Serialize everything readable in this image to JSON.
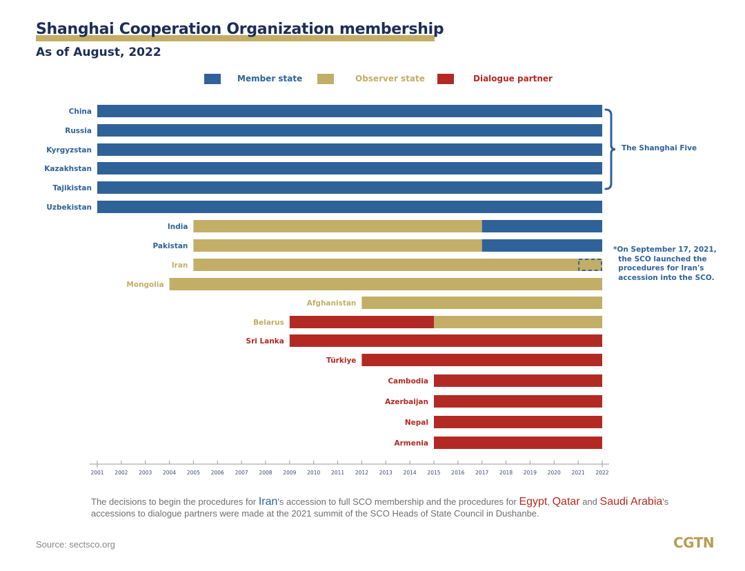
{
  "header": {
    "title": "Shanghai Cooperation Organization membership",
    "subtitle": "As of August, 2022"
  },
  "colors": {
    "member": "#2f6299",
    "observer": "#c2ae66",
    "dialogue": "#b32a24",
    "title": "#1c2d57",
    "axis": "#999999"
  },
  "chart_data": {
    "type": "bar",
    "orientation": "horizontal-timeline",
    "title": "Shanghai Cooperation Organization membership",
    "subtitle": "As of August, 2022",
    "xlabel": "",
    "ylabel": "",
    "xlim": [
      2001,
      2022
    ],
    "x_ticks": [
      "2001",
      "2002",
      "2003",
      "2004",
      "2005",
      "2006",
      "2007",
      "2008",
      "2009",
      "2010",
      "2011",
      "2012",
      "2013",
      "2014",
      "2015",
      "2016",
      "2017",
      "2018",
      "2019",
      "2020",
      "2021",
      "2022"
    ],
    "legend": {
      "placement": "top-center",
      "entries": [
        {
          "key": "member",
          "label": "Member state"
        },
        {
          "key": "observer",
          "label": "Observer state"
        },
        {
          "key": "dialogue",
          "label": "Dialogue partner"
        }
      ]
    },
    "rows": [
      {
        "country": "China",
        "label_status": "member",
        "segments": [
          {
            "status": "member",
            "start": 2001,
            "end": 2022
          }
        ]
      },
      {
        "country": "Russia",
        "label_status": "member",
        "segments": [
          {
            "status": "member",
            "start": 2001,
            "end": 2022
          }
        ]
      },
      {
        "country": "Kyrgyzstan",
        "label_status": "member",
        "segments": [
          {
            "status": "member",
            "start": 2001,
            "end": 2022
          }
        ]
      },
      {
        "country": "Kazakhstan",
        "label_status": "member",
        "segments": [
          {
            "status": "member",
            "start": 2001,
            "end": 2022
          }
        ]
      },
      {
        "country": "Tajikistan",
        "label_status": "member",
        "segments": [
          {
            "status": "member",
            "start": 2001,
            "end": 2022
          }
        ]
      },
      {
        "country": "Uzbekistan",
        "label_status": "member",
        "segments": [
          {
            "status": "member",
            "start": 2001,
            "end": 2022
          }
        ]
      },
      {
        "country": "India",
        "label_status": "member",
        "segments": [
          {
            "status": "observer",
            "start": 2005,
            "end": 2017
          },
          {
            "status": "member",
            "start": 2017,
            "end": 2022
          }
        ]
      },
      {
        "country": "Pakistan",
        "label_status": "member",
        "segments": [
          {
            "status": "observer",
            "start": 2005,
            "end": 2017
          },
          {
            "status": "member",
            "start": 2017,
            "end": 2022
          }
        ]
      },
      {
        "country": "Iran",
        "label_status": "observer",
        "segments": [
          {
            "status": "observer",
            "start": 2005,
            "end": 2022
          }
        ],
        "accession_pending": {
          "start": 2021,
          "end": 2022
        }
      },
      {
        "country": "Mongolia",
        "label_status": "observer",
        "segments": [
          {
            "status": "observer",
            "start": 2004,
            "end": 2022
          }
        ]
      },
      {
        "country": "Afghanistan",
        "label_status": "observer",
        "segments": [
          {
            "status": "observer",
            "start": 2012,
            "end": 2022
          }
        ]
      },
      {
        "country": "Belarus",
        "label_status": "observer",
        "segments": [
          {
            "status": "dialogue",
            "start": 2009,
            "end": 2015
          },
          {
            "status": "observer",
            "start": 2015,
            "end": 2022
          }
        ]
      },
      {
        "country": "Sri Lanka",
        "label_status": "dialogue",
        "segments": [
          {
            "status": "dialogue",
            "start": 2009,
            "end": 2022
          }
        ]
      },
      {
        "country": "Türkiye",
        "label_status": "dialogue",
        "segments": [
          {
            "status": "dialogue",
            "start": 2012,
            "end": 2022
          }
        ]
      },
      {
        "country": "Cambodia",
        "label_status": "dialogue",
        "segments": [
          {
            "status": "dialogue",
            "start": 2015,
            "end": 2022
          }
        ]
      },
      {
        "country": "Azerbaijan",
        "label_status": "dialogue",
        "segments": [
          {
            "status": "dialogue",
            "start": 2015,
            "end": 2022
          }
        ]
      },
      {
        "country": "Nepal",
        "label_status": "dialogue",
        "segments": [
          {
            "status": "dialogue",
            "start": 2015,
            "end": 2022
          }
        ]
      },
      {
        "country": "Armenia",
        "label_status": "dialogue",
        "segments": [
          {
            "status": "dialogue",
            "start": 2015,
            "end": 2022
          }
        ]
      }
    ],
    "annotations": [
      {
        "type": "brace",
        "rows": [
          "China",
          "Russia",
          "Kyrgyzstan",
          "Kazakhstan",
          "Tajikistan"
        ],
        "text": "The Shanghai Five"
      },
      {
        "type": "note",
        "row": "Iran",
        "text": "*On September 17, 2021,\n  the SCO launched the\n  procedures for Iran's\n  accession into the SCO."
      }
    ],
    "grid": false
  },
  "footnote": {
    "part1": "The decisions to begin the procedures for ",
    "iran": "Iran",
    "part2": "'s accession to full SCO membership and the procedures for ",
    "egypt": "Egypt",
    "comma": ", ",
    "qatar": "Qatar",
    "and": " and ",
    "saudi": "Saudi Arabia",
    "part3": "'s accessions to dialogue partners were made at the 2021 summit of the SCO Heads of State Council in Dushanbe."
  },
  "footer": {
    "source": "Source: sectsco.org",
    "logo": "CGTN"
  }
}
